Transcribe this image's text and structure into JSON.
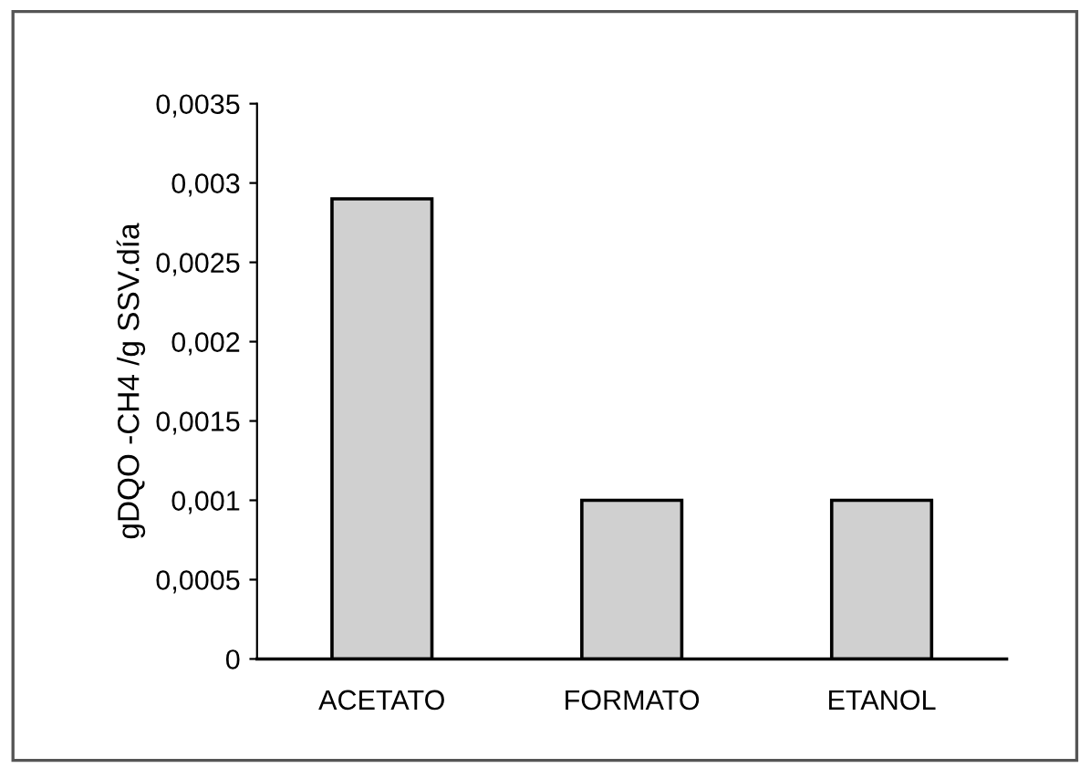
{
  "chart_data": {
    "type": "bar",
    "ylabel": "gDQO -CH4 /g SSV.día",
    "categories": [
      "ACETATO",
      "FORMATO",
      "ETANOL"
    ],
    "values": [
      0.0029,
      0.001,
      0.001
    ],
    "color": "#d0d0d0",
    "ylim": [
      0,
      0.0035
    ],
    "yticks": [
      0,
      {
        "value": 0.0005,
        "label": "0,0005"
      },
      {
        "value": 0.001,
        "label": "0,001"
      },
      {
        "value": 0.0015,
        "label": "0,0015"
      },
      {
        "value": 0.002,
        "label": "0,002"
      },
      {
        "value": 0.0025,
        "label": "0,0025"
      },
      {
        "value": 0.003,
        "label": "0,003"
      },
      {
        "value": 0.0035,
        "label": "0,0035"
      }
    ],
    "grid": false
  }
}
